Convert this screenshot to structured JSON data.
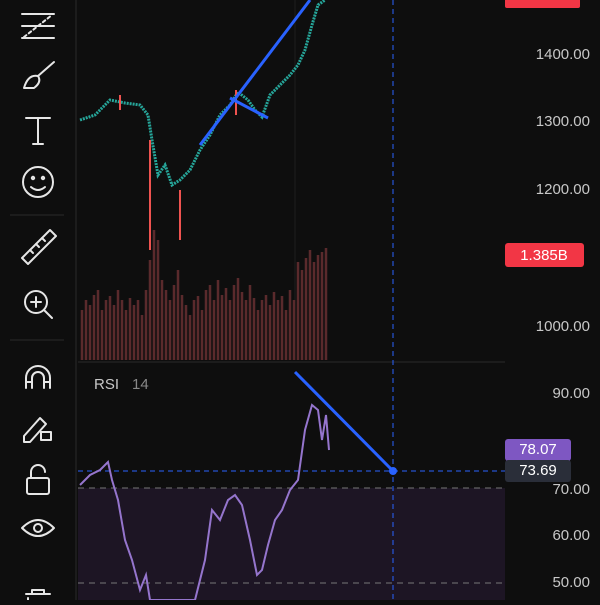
{
  "price_axis": {
    "labels": [
      "1400.00",
      "1300.00",
      "1200.00",
      "1000.00"
    ]
  },
  "volume_badge": "1.385B",
  "rsi": {
    "title": "RSI",
    "length": "14",
    "axis_labels": [
      "90.00",
      "70.00",
      "60.00",
      "50.00"
    ],
    "badges": [
      "78.07",
      "73.69"
    ]
  }
}
